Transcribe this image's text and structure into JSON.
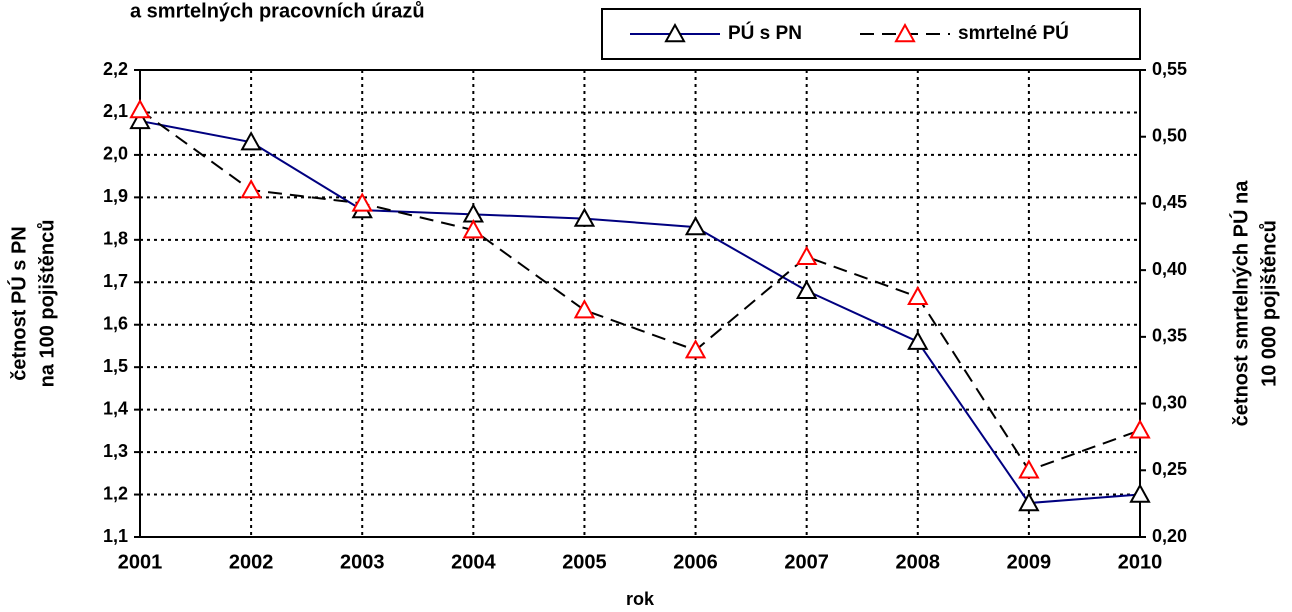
{
  "chart_data": {
    "type": "line",
    "title": "a smrtelných pracovních úrazů",
    "xlabel": "rok",
    "ylabel": [
      "četnost PÚ s PN",
      "na 100 pojištěnců"
    ],
    "y2label": [
      "četnost smrtelných PÚ na",
      "10 000 pojištěnců"
    ],
    "categories": [
      "2001",
      "2002",
      "2003",
      "2004",
      "2005",
      "2006",
      "2007",
      "2008",
      "2009",
      "2010"
    ],
    "series": [
      {
        "name": "PÚ s PN",
        "color": "#000080",
        "marker_color": "#000000",
        "dash": false,
        "axis": "y",
        "values": [
          2.08,
          2.03,
          1.87,
          1.86,
          1.85,
          1.83,
          1.68,
          1.56,
          1.18,
          1.2
        ]
      },
      {
        "name": "smrtelné PÚ",
        "color": "#000000",
        "marker_color": "#ff0000",
        "dash": true,
        "axis": "y2",
        "values": [
          0.52,
          0.46,
          0.45,
          0.43,
          0.37,
          0.34,
          0.41,
          0.38,
          0.25,
          0.28
        ]
      }
    ],
    "ylim": [
      1.1,
      2.2
    ],
    "yticks": [
      {
        "value": 1.1,
        "label": "1,1"
      },
      {
        "value": 1.2,
        "label": "1,2"
      },
      {
        "value": 1.3,
        "label": "1,3"
      },
      {
        "value": 1.4,
        "label": "1,4"
      },
      {
        "value": 1.5,
        "label": "1,5"
      },
      {
        "value": 1.6,
        "label": "1,6"
      },
      {
        "value": 1.7,
        "label": "1,7"
      },
      {
        "value": 1.8,
        "label": "1,8"
      },
      {
        "value": 1.9,
        "label": "1,9"
      },
      {
        "value": 2.0,
        "label": "2,0"
      },
      {
        "value": 2.1,
        "label": "2,1"
      },
      {
        "value": 2.2,
        "label": "2,2"
      }
    ],
    "y2lim": [
      0.2,
      0.55
    ],
    "y2ticks": [
      {
        "value": 0.2,
        "label": "0,20"
      },
      {
        "value": 0.25,
        "label": "0,25"
      },
      {
        "value": 0.3,
        "label": "0,30"
      },
      {
        "value": 0.35,
        "label": "0,35"
      },
      {
        "value": 0.4,
        "label": "0,40"
      },
      {
        "value": 0.45,
        "label": "0,45"
      },
      {
        "value": 0.5,
        "label": "0,50"
      },
      {
        "value": 0.55,
        "label": "0,55"
      }
    ],
    "grid": true,
    "legend": "top-right"
  }
}
